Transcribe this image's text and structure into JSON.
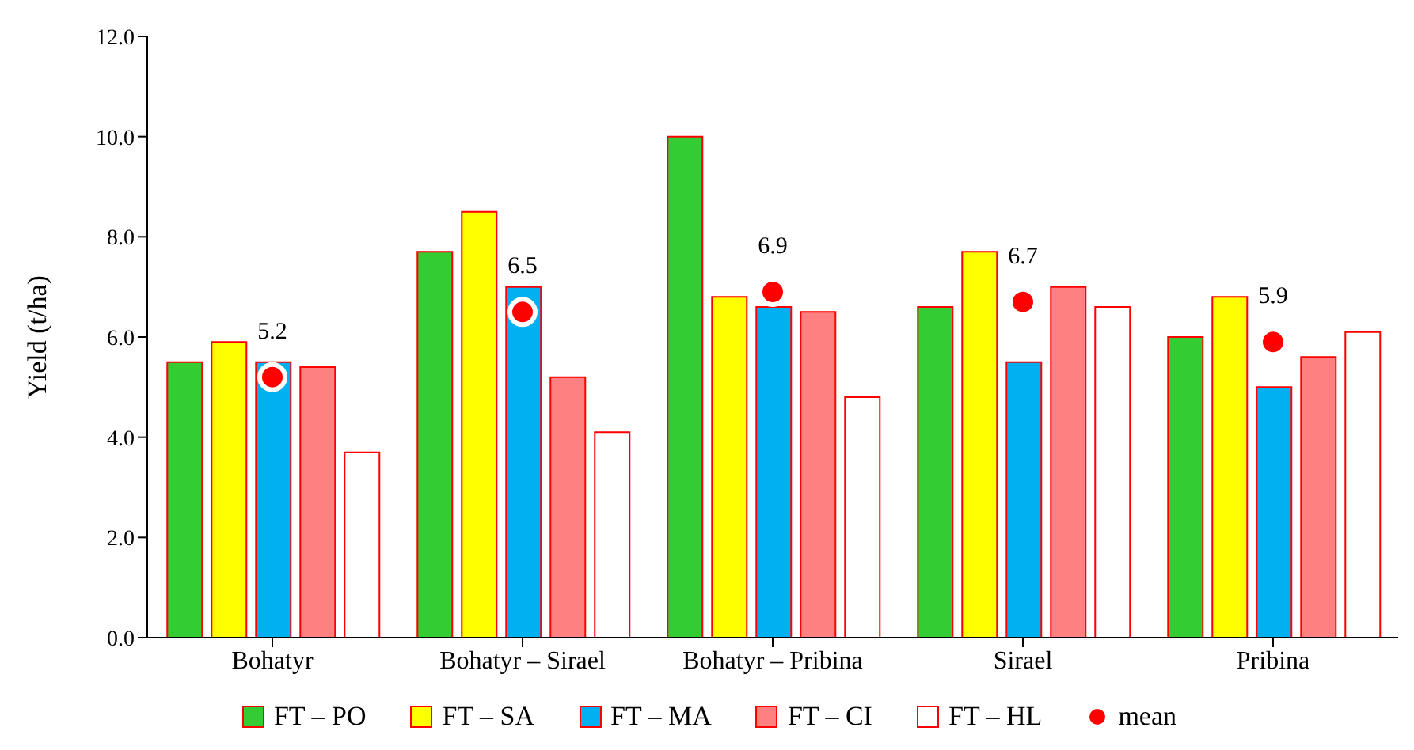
{
  "chart_data": {
    "type": "bar",
    "ylabel": "Yield (t/ha)",
    "categories": [
      "Bohatyr",
      "Bohatyr – Sirael",
      "Bohatyr – Pribina",
      "Sirael",
      "Pribina"
    ],
    "series": [
      {
        "name": "FT – PO",
        "color": "#33cc33",
        "values": [
          5.5,
          7.7,
          10.0,
          6.6,
          6.0
        ]
      },
      {
        "name": "FT – SA",
        "color": "#ffff00",
        "values": [
          5.9,
          8.5,
          6.8,
          7.7,
          6.8
        ]
      },
      {
        "name": "FT – MA",
        "color": "#00b0f0",
        "values": [
          5.5,
          7.0,
          6.6,
          5.5,
          5.0
        ]
      },
      {
        "name": "FT – CI",
        "color": "#ff8080",
        "values": [
          5.4,
          5.2,
          6.5,
          7.0,
          5.6
        ]
      },
      {
        "name": "FT – HL",
        "color": "#ffffff",
        "values": [
          3.7,
          4.1,
          4.8,
          6.6,
          6.1
        ]
      },
      {
        "name": "mean",
        "type": "scatter",
        "color": "#ff0000",
        "x": [
          "Bohatyr",
          "Bohatyr – Sirael",
          "Bohatyr – Pribina",
          "Sirael",
          "Pribina"
        ],
        "values": [
          5.2,
          6.5,
          6.9,
          6.7,
          5.9
        ],
        "value_labels": [
          "5.2",
          "6.5",
          "6.9",
          "6.7",
          "5.9"
        ]
      }
    ],
    "ylim": [
      0,
      12
    ],
    "yticks": [
      {
        "value": 0,
        "label": "0.0"
      },
      {
        "value": 2,
        "label": "2.0"
      },
      {
        "value": 4,
        "label": "4.0"
      },
      {
        "value": 6,
        "label": "6.0"
      },
      {
        "value": 8,
        "label": "8.0"
      },
      {
        "value": 10,
        "label": "10.0"
      },
      {
        "value": 12,
        "label": "12.0"
      }
    ],
    "grid": false,
    "legend": "bottom",
    "marker": "circle"
  }
}
